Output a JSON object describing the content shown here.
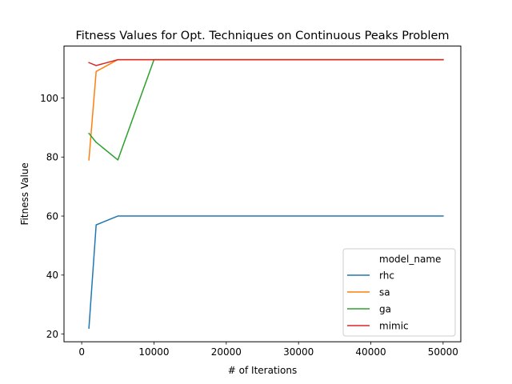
{
  "chart_data": {
    "type": "line",
    "title": "Fitness Values for Opt. Techniques on Continuous Peaks Problem",
    "xlabel": "# of Iterations",
    "ylabel": "Fitness Value",
    "xlim": [
      -2450,
      52450
    ],
    "ylim": [
      17.4,
      117.6
    ],
    "xticks": [
      0,
      10000,
      20000,
      30000,
      40000,
      50000
    ],
    "yticks": [
      20,
      40,
      60,
      80,
      100
    ],
    "grid": false,
    "legend": {
      "title": "model_name",
      "position": "lower-right"
    },
    "series": [
      {
        "name": "rhc",
        "color": "#1f77b4",
        "x": [
          1000,
          2000,
          5000,
          10000,
          50000
        ],
        "y": [
          22,
          57,
          60,
          60,
          60
        ]
      },
      {
        "name": "sa",
        "color": "#ff7f0e",
        "x": [
          1000,
          2000,
          5000,
          10000,
          50000
        ],
        "y": [
          79,
          109,
          113,
          113,
          113
        ]
      },
      {
        "name": "ga",
        "color": "#2ca02c",
        "x": [
          1000,
          2000,
          5000,
          10000,
          50000
        ],
        "y": [
          88,
          85,
          79,
          113,
          113
        ]
      },
      {
        "name": "mimic",
        "color": "#d62728",
        "x": [
          1000,
          2000,
          5000,
          10000,
          50000
        ],
        "y": [
          112,
          111,
          113,
          113,
          113
        ]
      }
    ]
  }
}
